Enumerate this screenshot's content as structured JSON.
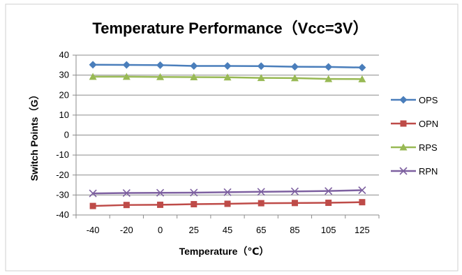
{
  "chart_data": {
    "type": "line",
    "title": "Temperature Performance（Vcc=3V）",
    "xlabel": "Temperature（℃）",
    "ylabel": "Switch Points（G）",
    "categories": [
      "-40",
      "-20",
      "0",
      "25",
      "45",
      "65",
      "85",
      "105",
      "125"
    ],
    "ylim": [
      -40,
      40
    ],
    "yticks": [
      40,
      30,
      20,
      10,
      0,
      -10,
      -20,
      -30,
      -40
    ],
    "grid": true,
    "legend_position": "right",
    "series": [
      {
        "name": "OPS",
        "color": "#4a7ebb",
        "marker": "diamond",
        "values": [
          35.2,
          35.1,
          35.0,
          34.6,
          34.6,
          34.5,
          34.2,
          34.1,
          33.8
        ]
      },
      {
        "name": "OPN",
        "color": "#be4b48",
        "marker": "square",
        "values": [
          -35.5,
          -35.0,
          -34.9,
          -34.6,
          -34.4,
          -34.1,
          -34.0,
          -33.9,
          -33.6
        ]
      },
      {
        "name": "RPS",
        "color": "#98b954",
        "marker": "triangle",
        "values": [
          29.2,
          29.2,
          29.1,
          29.0,
          28.9,
          28.6,
          28.5,
          28.1,
          28.0
        ]
      },
      {
        "name": "RPN",
        "color": "#7d60a0",
        "marker": "x",
        "values": [
          -29.2,
          -29.0,
          -28.9,
          -28.8,
          -28.6,
          -28.4,
          -28.2,
          -28.0,
          -27.6
        ]
      }
    ]
  }
}
